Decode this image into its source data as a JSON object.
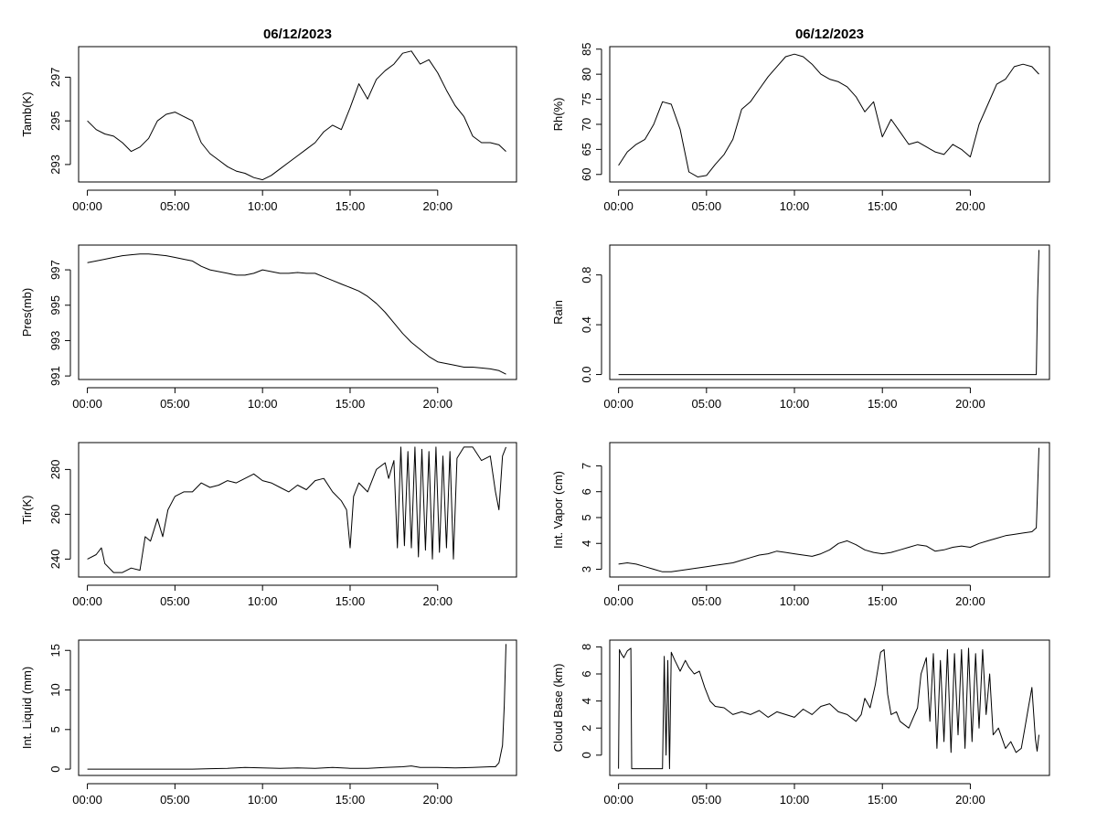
{
  "figure": {
    "date_title": "06/12/2023"
  },
  "chart_data": [
    {
      "id": "tamb",
      "type": "line",
      "title": "06/12/2023",
      "xlabel": "",
      "ylabel": "Tamb(K)",
      "xlim": [
        -0.5,
        24.5
      ],
      "ylim": [
        292.2,
        298.4
      ],
      "x_ticks": [
        0,
        5,
        10,
        15,
        20
      ],
      "x_tick_labels": [
        "00:00",
        "05:00",
        "10:00",
        "15:00",
        "20:00"
      ],
      "y_ticks": [
        293,
        295,
        297
      ],
      "y_tick_labels": [
        "293",
        "295",
        "297"
      ],
      "series": [
        {
          "x": [
            0,
            0.5,
            1,
            1.5,
            2,
            2.5,
            3,
            3.5,
            4,
            4.5,
            5,
            5.5,
            6,
            6.5,
            7,
            7.5,
            8,
            8.5,
            9,
            9.5,
            10,
            10.5,
            11,
            11.5,
            12,
            12.5,
            13,
            13.5,
            14,
            14.5,
            15,
            15.5,
            16,
            16.5,
            17,
            17.5,
            18,
            18.5,
            19,
            19.5,
            20,
            20.5,
            21,
            21.5,
            22,
            22.5,
            23,
            23.5,
            23.9
          ],
          "values": [
            295.0,
            294.6,
            294.4,
            294.3,
            294.0,
            293.6,
            293.8,
            294.2,
            295.0,
            295.3,
            295.4,
            295.2,
            295.0,
            294.0,
            293.5,
            293.2,
            292.9,
            292.7,
            292.6,
            292.4,
            292.3,
            292.5,
            292.8,
            293.1,
            293.4,
            293.7,
            294.0,
            294.5,
            294.8,
            294.6,
            295.6,
            296.7,
            296.0,
            296.9,
            297.3,
            297.6,
            298.1,
            298.2,
            297.6,
            297.8,
            297.2,
            296.4,
            295.7,
            295.2,
            294.3,
            294.0,
            294.0,
            293.9,
            293.6
          ]
        }
      ]
    },
    {
      "id": "rh",
      "type": "line",
      "title": "06/12/2023",
      "xlabel": "",
      "ylabel": "Rh(%)",
      "xlim": [
        -0.5,
        24.5
      ],
      "ylim": [
        58.5,
        85.5
      ],
      "x_ticks": [
        0,
        5,
        10,
        15,
        20
      ],
      "x_tick_labels": [
        "00:00",
        "05:00",
        "10:00",
        "15:00",
        "20:00"
      ],
      "y_ticks": [
        60,
        65,
        70,
        75,
        80,
        85
      ],
      "y_tick_labels": [
        "60",
        "65",
        "70",
        "75",
        "80",
        "85"
      ],
      "series": [
        {
          "x": [
            0,
            0.5,
            1,
            1.5,
            2,
            2.5,
            3,
            3.5,
            4,
            4.5,
            5,
            5.5,
            6,
            6.5,
            7,
            7.5,
            8,
            8.5,
            9,
            9.5,
            10,
            10.5,
            11,
            11.5,
            12,
            12.5,
            13,
            13.5,
            14,
            14.5,
            15,
            15.5,
            16,
            16.5,
            17,
            17.5,
            18,
            18.5,
            19,
            19.5,
            20,
            20.5,
            21,
            21.5,
            22,
            22.5,
            23,
            23.5,
            23.9
          ],
          "values": [
            61.8,
            64.5,
            66.0,
            67.0,
            70.0,
            74.5,
            74.0,
            69.0,
            60.5,
            59.5,
            59.8,
            62.0,
            64.0,
            67.0,
            73.0,
            74.5,
            77.0,
            79.5,
            81.5,
            83.5,
            84.0,
            83.5,
            82.0,
            80.0,
            79.0,
            78.5,
            77.5,
            75.5,
            72.5,
            74.5,
            67.5,
            71.0,
            68.5,
            66.0,
            66.5,
            65.5,
            64.5,
            64.0,
            66.0,
            65.0,
            63.5,
            70.0,
            74.0,
            78.0,
            79.0,
            81.5,
            82.0,
            81.5,
            80.0
          ]
        }
      ]
    },
    {
      "id": "pres",
      "type": "line",
      "title": "",
      "xlabel": "",
      "ylabel": "Pres(mb)",
      "xlim": [
        -0.5,
        24.5
      ],
      "ylim": [
        990.8,
        998.4
      ],
      "x_ticks": [
        0,
        5,
        10,
        15,
        20
      ],
      "x_tick_labels": [
        "00:00",
        "05:00",
        "10:00",
        "15:00",
        "20:00"
      ],
      "y_ticks": [
        991,
        993,
        995,
        997
      ],
      "y_tick_labels": [
        "991",
        "993",
        "995",
        "997"
      ],
      "series": [
        {
          "x": [
            0,
            0.5,
            1,
            1.5,
            2,
            2.5,
            3,
            3.5,
            4,
            4.5,
            5,
            5.5,
            6,
            6.5,
            7,
            7.5,
            8,
            8.5,
            9,
            9.5,
            10,
            10.5,
            11,
            11.5,
            12,
            12.5,
            13,
            13.5,
            14,
            14.5,
            15,
            15.5,
            16,
            16.5,
            17,
            17.5,
            18,
            18.5,
            19,
            19.5,
            20,
            20.5,
            21,
            21.5,
            22,
            22.5,
            23,
            23.5,
            23.9
          ],
          "values": [
            997.4,
            997.5,
            997.6,
            997.7,
            997.8,
            997.85,
            997.9,
            997.9,
            997.85,
            997.8,
            997.7,
            997.6,
            997.5,
            997.2,
            997.0,
            996.9,
            996.8,
            996.7,
            996.7,
            996.8,
            997.0,
            996.9,
            996.8,
            996.8,
            996.85,
            996.8,
            996.8,
            996.6,
            996.4,
            996.2,
            996.0,
            995.8,
            995.5,
            995.1,
            994.6,
            994.0,
            993.4,
            992.9,
            992.5,
            992.1,
            991.8,
            991.7,
            991.6,
            991.5,
            991.5,
            991.45,
            991.4,
            991.3,
            991.1
          ]
        }
      ]
    },
    {
      "id": "rain",
      "type": "line",
      "title": "",
      "xlabel": "",
      "ylabel": "Rain",
      "xlim": [
        -0.5,
        24.5
      ],
      "ylim": [
        -0.04,
        1.04
      ],
      "x_ticks": [
        0,
        5,
        10,
        15,
        20
      ],
      "x_tick_labels": [
        "00:00",
        "05:00",
        "10:00",
        "15:00",
        "20:00"
      ],
      "y_ticks": [
        0.0,
        0.4,
        0.8
      ],
      "y_tick_labels": [
        "0.0",
        "0.4",
        "0.8"
      ],
      "series": [
        {
          "x": [
            0,
            23.75,
            23.82,
            23.9
          ],
          "values": [
            0,
            0,
            0.6,
            1.0
          ]
        }
      ]
    },
    {
      "id": "tir",
      "type": "line",
      "title": "",
      "xlabel": "",
      "ylabel": "Tir(K)",
      "xlim": [
        -0.5,
        24.5
      ],
      "ylim": [
        232,
        292
      ],
      "x_ticks": [
        0,
        5,
        10,
        15,
        20
      ],
      "x_tick_labels": [
        "00:00",
        "05:00",
        "10:00",
        "15:00",
        "20:00"
      ],
      "y_ticks": [
        240,
        260,
        280
      ],
      "y_tick_labels": [
        "240",
        "260",
        "280"
      ],
      "series": [
        {
          "x": [
            0,
            0.5,
            0.8,
            1,
            1.5,
            2,
            2.5,
            3,
            3.3,
            3.6,
            4,
            4.3,
            4.6,
            5,
            5.5,
            6,
            6.5,
            7,
            7.5,
            8,
            8.5,
            9,
            9.5,
            10,
            10.5,
            11,
            11.5,
            12,
            12.5,
            13,
            13.5,
            14,
            14.5,
            14.8,
            15,
            15.2,
            15.5,
            16,
            16.5,
            17,
            17.2,
            17.5,
            17.7,
            17.9,
            18.1,
            18.3,
            18.5,
            18.7,
            18.9,
            19.1,
            19.3,
            19.5,
            19.7,
            19.9,
            20.1,
            20.3,
            20.5,
            20.7,
            20.9,
            21.1,
            21.5,
            22,
            22.5,
            23,
            23.3,
            23.5,
            23.7,
            23.9
          ],
          "values": [
            240,
            242,
            245,
            238,
            234,
            234,
            236,
            235,
            250,
            248,
            258,
            250,
            262,
            268,
            270,
            270,
            274,
            272,
            273,
            275,
            274,
            276,
            278,
            275,
            274,
            272,
            270,
            273,
            271,
            275,
            276,
            270,
            266,
            262,
            245,
            268,
            274,
            270,
            280,
            283,
            276,
            284,
            245,
            290,
            246,
            288,
            245,
            290,
            241,
            289,
            244,
            288,
            240,
            290,
            243,
            286,
            245,
            288,
            240,
            285,
            290,
            290,
            284,
            286,
            270,
            262,
            286,
            290
          ]
        }
      ]
    },
    {
      "id": "vapor",
      "type": "line",
      "title": "",
      "xlabel": "",
      "ylabel": "Int. Vapor (cm)",
      "xlim": [
        -0.5,
        24.5
      ],
      "ylim": [
        2.7,
        7.9
      ],
      "x_ticks": [
        0,
        5,
        10,
        15,
        20
      ],
      "x_tick_labels": [
        "00:00",
        "05:00",
        "10:00",
        "15:00",
        "20:00"
      ],
      "y_ticks": [
        3,
        4,
        5,
        6,
        7
      ],
      "y_tick_labels": [
        "3",
        "4",
        "5",
        "6",
        "7"
      ],
      "series": [
        {
          "x": [
            0,
            0.5,
            1,
            1.5,
            2,
            2.5,
            3,
            3.5,
            4,
            4.5,
            5,
            5.5,
            6,
            6.5,
            7,
            7.5,
            8,
            8.5,
            9,
            9.5,
            10,
            10.5,
            11,
            11.5,
            12,
            12.5,
            13,
            13.5,
            14,
            14.5,
            15,
            15.5,
            16,
            16.5,
            17,
            17.5,
            18,
            18.5,
            19,
            19.5,
            20,
            20.5,
            21,
            21.5,
            22,
            22.5,
            23,
            23.5,
            23.75,
            23.9
          ],
          "values": [
            3.2,
            3.25,
            3.2,
            3.1,
            3.0,
            2.9,
            2.9,
            2.95,
            3.0,
            3.05,
            3.1,
            3.15,
            3.2,
            3.25,
            3.35,
            3.45,
            3.55,
            3.6,
            3.7,
            3.65,
            3.6,
            3.55,
            3.5,
            3.6,
            3.75,
            4.0,
            4.1,
            3.95,
            3.75,
            3.65,
            3.6,
            3.65,
            3.75,
            3.85,
            3.95,
            3.9,
            3.7,
            3.75,
            3.85,
            3.9,
            3.85,
            4.0,
            4.1,
            4.2,
            4.3,
            4.35,
            4.4,
            4.45,
            4.6,
            7.7
          ]
        }
      ]
    },
    {
      "id": "liquid",
      "type": "line",
      "title": "",
      "xlabel": "",
      "ylabel": "Int. Liquid (mm)",
      "xlim": [
        -0.5,
        24.5
      ],
      "ylim": [
        -0.8,
        16.3
      ],
      "x_ticks": [
        0,
        5,
        10,
        15,
        20
      ],
      "x_tick_labels": [
        "00:00",
        "05:00",
        "10:00",
        "15:00",
        "20:00"
      ],
      "y_ticks": [
        0,
        5,
        10,
        15
      ],
      "y_tick_labels": [
        "0",
        "5",
        "10",
        "15"
      ],
      "series": [
        {
          "x": [
            0,
            6,
            7,
            8,
            9,
            10,
            11,
            12,
            13,
            14,
            15,
            16,
            17,
            18,
            18.5,
            19,
            20,
            21,
            22,
            23,
            23.3,
            23.5,
            23.7,
            23.8,
            23.9
          ],
          "values": [
            0,
            0,
            0.05,
            0.1,
            0.2,
            0.15,
            0.1,
            0.15,
            0.1,
            0.2,
            0.1,
            0.1,
            0.2,
            0.3,
            0.4,
            0.2,
            0.2,
            0.15,
            0.2,
            0.3,
            0.3,
            0.8,
            3.0,
            8.0,
            15.8
          ]
        }
      ]
    },
    {
      "id": "cloudbase",
      "type": "line",
      "title": "",
      "xlabel": "",
      "ylabel": "Cloud Base (km)",
      "xlim": [
        -0.5,
        24.5
      ],
      "ylim": [
        -1.5,
        8.5
      ],
      "x_ticks": [
        0,
        5,
        10,
        15,
        20
      ],
      "x_tick_labels": [
        "00:00",
        "05:00",
        "10:00",
        "15:00",
        "20:00"
      ],
      "y_ticks": [
        0,
        2,
        4,
        6,
        8
      ],
      "y_tick_labels": [
        "0",
        "2",
        "4",
        "6",
        "8"
      ],
      "series": [
        {
          "x": [
            0,
            0.05,
            0.15,
            0.3,
            0.5,
            0.7,
            0.75,
            2.5,
            2.6,
            2.7,
            2.8,
            2.9,
            3.0,
            3.2,
            3.5,
            3.8,
            4.0,
            4.3,
            4.6,
            4.9,
            5.2,
            5.5,
            6.0,
            6.5,
            7.0,
            7.5,
            8.0,
            8.5,
            9.0,
            9.5,
            10.0,
            10.5,
            11.0,
            11.5,
            12.0,
            12.5,
            13.0,
            13.5,
            13.8,
            14.0,
            14.3,
            14.6,
            14.9,
            15.1,
            15.3,
            15.5,
            15.8,
            16.0,
            16.5,
            17.0,
            17.2,
            17.5,
            17.7,
            17.9,
            18.1,
            18.3,
            18.5,
            18.7,
            18.9,
            19.1,
            19.3,
            19.5,
            19.7,
            19.9,
            20.1,
            20.3,
            20.5,
            20.7,
            20.9,
            21.1,
            21.3,
            21.6,
            22.0,
            22.3,
            22.6,
            22.9,
            23.1,
            23.3,
            23.5,
            23.7,
            23.8,
            23.9
          ],
          "values": [
            -1.0,
            7.8,
            7.5,
            7.2,
            7.7,
            7.9,
            -1.0,
            -1.0,
            7.3,
            0,
            7.0,
            -1.0,
            7.6,
            7.0,
            6.2,
            7.0,
            6.5,
            6.0,
            6.2,
            5.0,
            4.0,
            3.6,
            3.5,
            3.0,
            3.2,
            3.0,
            3.3,
            2.8,
            3.2,
            3.0,
            2.8,
            3.4,
            3.0,
            3.6,
            3.8,
            3.2,
            3.0,
            2.5,
            3.0,
            4.2,
            3.5,
            5.2,
            7.6,
            7.8,
            4.5,
            3.0,
            3.2,
            2.5,
            2.0,
            3.5,
            6.0,
            7.2,
            2.5,
            7.5,
            0.5,
            7.0,
            1.0,
            7.8,
            0.2,
            7.5,
            1.5,
            7.8,
            0.5,
            7.9,
            1.0,
            7.5,
            2.0,
            7.8,
            3.0,
            6.0,
            1.5,
            2.0,
            0.5,
            1.0,
            0.2,
            0.5,
            2.0,
            3.5,
            5.0,
            1.2,
            0.3,
            1.5
          ]
        }
      ]
    }
  ]
}
